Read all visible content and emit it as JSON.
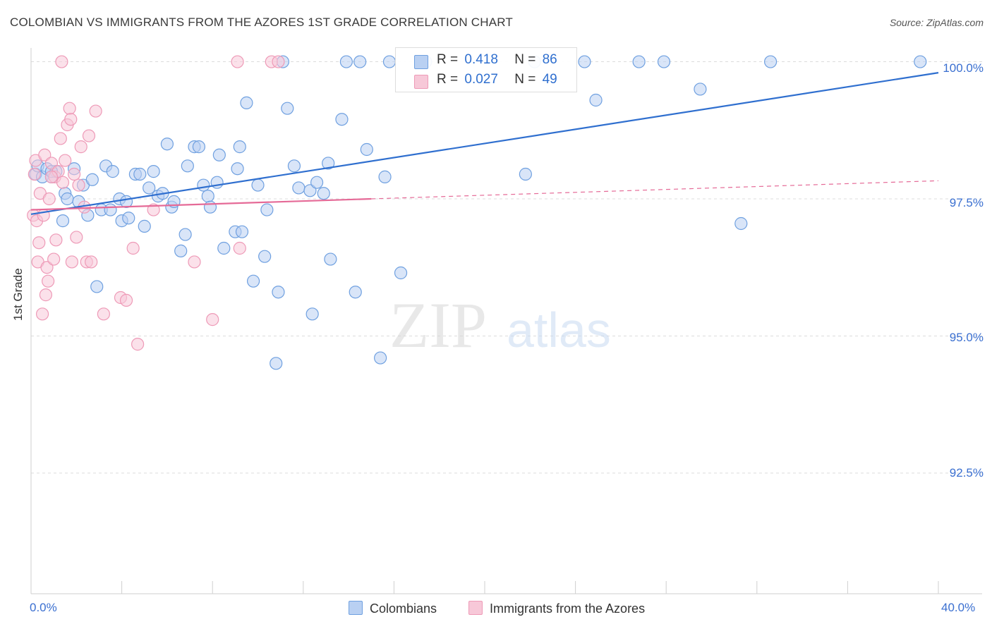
{
  "chart_data": {
    "type": "scatter",
    "title": "COLOMBIAN VS IMMIGRANTS FROM THE AZORES 1ST GRADE CORRELATION CHART",
    "source": "Source: ZipAtlas.com",
    "xlabel": "",
    "ylabel": "1st Grade",
    "xlim": [
      0,
      40
    ],
    "ylim": [
      90.3,
      100.2
    ],
    "x_tick_labels": {
      "left": "0.0%",
      "right": "40.0%"
    },
    "y_ticks": [
      {
        "value": 100.0,
        "label": "100.0%"
      },
      {
        "value": 97.5,
        "label": "97.5%"
      },
      {
        "value": 95.0,
        "label": "95.0%"
      },
      {
        "value": 92.5,
        "label": "92.5%"
      }
    ],
    "watermark": {
      "zip": "ZIP",
      "atlas": "atlas"
    },
    "legend": {
      "r_label": "R =",
      "n_label": "N =",
      "entries": [
        {
          "name": "Colombians",
          "r": "0.418",
          "n": "86"
        },
        {
          "name": "Immigrants from the Azores",
          "r": "0.027",
          "n": "49"
        }
      ]
    },
    "series": [
      {
        "name": "Colombians",
        "color": "#6fa0e0",
        "fill": "#b9d0f2",
        "trend_color": "#2f6fcf",
        "trend": {
          "x": [
            0,
            40
          ],
          "y": [
            97.22,
            99.8
          ],
          "dashed_from": null
        },
        "points": [
          [
            0.2,
            97.95
          ],
          [
            0.3,
            98.1
          ],
          [
            0.5,
            97.9
          ],
          [
            0.7,
            98.05
          ],
          [
            0.9,
            97.9
          ],
          [
            1.1,
            98.0
          ],
          [
            1.4,
            97.1
          ],
          [
            1.5,
            97.6
          ],
          [
            1.6,
            97.5
          ],
          [
            1.9,
            98.05
          ],
          [
            2.1,
            97.45
          ],
          [
            2.3,
            97.75
          ],
          [
            2.5,
            97.2
          ],
          [
            2.7,
            97.85
          ],
          [
            2.9,
            95.9
          ],
          [
            3.1,
            97.3
          ],
          [
            3.3,
            98.1
          ],
          [
            3.5,
            97.3
          ],
          [
            3.6,
            98.0
          ],
          [
            3.9,
            97.5
          ],
          [
            4.0,
            97.1
          ],
          [
            4.2,
            97.45
          ],
          [
            4.3,
            97.15
          ],
          [
            4.6,
            97.95
          ],
          [
            4.8,
            97.95
          ],
          [
            5.0,
            97.0
          ],
          [
            5.2,
            97.7
          ],
          [
            5.4,
            98.0
          ],
          [
            5.6,
            97.55
          ],
          [
            5.8,
            97.6
          ],
          [
            6.0,
            98.5
          ],
          [
            6.2,
            97.35
          ],
          [
            6.3,
            97.45
          ],
          [
            6.6,
            96.55
          ],
          [
            6.8,
            96.85
          ],
          [
            6.9,
            98.1
          ],
          [
            7.2,
            98.45
          ],
          [
            7.4,
            98.45
          ],
          [
            7.6,
            97.75
          ],
          [
            7.8,
            97.55
          ],
          [
            7.9,
            97.35
          ],
          [
            8.2,
            97.8
          ],
          [
            8.3,
            98.3
          ],
          [
            8.5,
            96.6
          ],
          [
            9.0,
            96.9
          ],
          [
            9.1,
            98.05
          ],
          [
            9.2,
            98.45
          ],
          [
            9.3,
            96.9
          ],
          [
            9.5,
            99.25
          ],
          [
            9.8,
            96.0
          ],
          [
            10.0,
            97.75
          ],
          [
            10.3,
            96.45
          ],
          [
            10.4,
            97.3
          ],
          [
            10.8,
            94.5
          ],
          [
            10.9,
            95.8
          ],
          [
            11.1,
            100.0
          ],
          [
            11.3,
            99.15
          ],
          [
            11.6,
            98.1
          ],
          [
            11.8,
            97.7
          ],
          [
            12.3,
            97.65
          ],
          [
            12.4,
            95.4
          ],
          [
            12.6,
            97.8
          ],
          [
            12.9,
            97.6
          ],
          [
            13.1,
            98.15
          ],
          [
            13.2,
            96.4
          ],
          [
            13.7,
            98.95
          ],
          [
            13.9,
            100.0
          ],
          [
            14.3,
            95.8
          ],
          [
            14.5,
            100.0
          ],
          [
            14.8,
            98.4
          ],
          [
            15.4,
            94.6
          ],
          [
            15.6,
            97.9
          ],
          [
            15.8,
            100.0
          ],
          [
            16.3,
            96.15
          ],
          [
            17.4,
            100.0
          ],
          [
            21.8,
            97.95
          ],
          [
            22.2,
            100.0
          ],
          [
            24.4,
            100.0
          ],
          [
            24.9,
            99.3
          ],
          [
            26.8,
            100.0
          ],
          [
            27.9,
            100.0
          ],
          [
            29.5,
            99.5
          ],
          [
            31.3,
            97.05
          ],
          [
            32.6,
            100.0
          ],
          [
            39.2,
            100.0
          ],
          [
            0.9,
            98.0
          ]
        ]
      },
      {
        "name": "Immigrants from the Azores",
        "color": "#ee9ab7",
        "fill": "#f7c8d8",
        "trend_color": "#e56a97",
        "trend": {
          "x": [
            0,
            15
          ],
          "y": [
            97.3,
            97.5
          ],
          "dashed_to": [
            40,
            97.83
          ]
        },
        "points": [
          [
            0.1,
            97.2
          ],
          [
            0.15,
            97.95
          ],
          [
            0.2,
            98.2
          ],
          [
            0.25,
            97.1
          ],
          [
            0.3,
            96.35
          ],
          [
            0.35,
            96.7
          ],
          [
            0.4,
            97.6
          ],
          [
            0.5,
            95.4
          ],
          [
            0.55,
            97.2
          ],
          [
            0.6,
            98.3
          ],
          [
            0.65,
            95.75
          ],
          [
            0.7,
            96.25
          ],
          [
            0.75,
            96.0
          ],
          [
            0.8,
            97.5
          ],
          [
            0.9,
            98.15
          ],
          [
            1.0,
            96.4
          ],
          [
            1.05,
            97.9
          ],
          [
            1.1,
            96.75
          ],
          [
            1.2,
            98.0
          ],
          [
            1.3,
            98.6
          ],
          [
            1.35,
            100.0
          ],
          [
            1.4,
            97.8
          ],
          [
            1.5,
            98.2
          ],
          [
            1.6,
            98.85
          ],
          [
            1.7,
            99.15
          ],
          [
            1.75,
            98.95
          ],
          [
            1.8,
            96.35
          ],
          [
            1.9,
            97.95
          ],
          [
            2.0,
            96.8
          ],
          [
            2.1,
            97.75
          ],
          [
            2.2,
            98.45
          ],
          [
            2.35,
            97.35
          ],
          [
            2.45,
            96.35
          ],
          [
            2.55,
            98.65
          ],
          [
            2.65,
            96.35
          ],
          [
            2.85,
            99.1
          ],
          [
            3.2,
            95.4
          ],
          [
            3.95,
            95.7
          ],
          [
            4.2,
            95.65
          ],
          [
            4.5,
            96.6
          ],
          [
            4.7,
            94.85
          ],
          [
            5.4,
            97.3
          ],
          [
            7.2,
            96.35
          ],
          [
            8.0,
            95.3
          ],
          [
            9.1,
            100.0
          ],
          [
            9.2,
            96.6
          ],
          [
            10.6,
            100.0
          ],
          [
            10.9,
            100.0
          ],
          [
            0.9,
            97.9
          ]
        ]
      }
    ]
  }
}
